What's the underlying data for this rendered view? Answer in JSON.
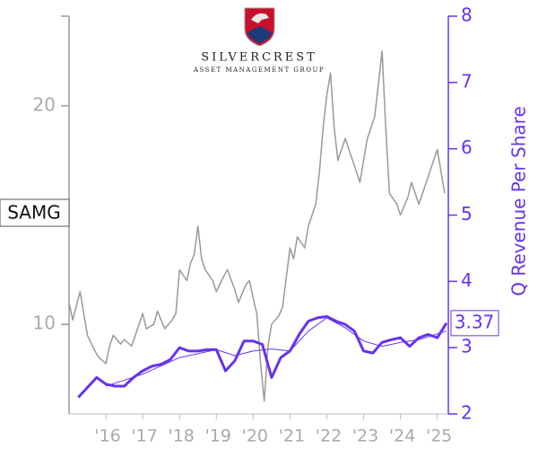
{
  "logo": {
    "name": "SILVERCREST",
    "tagline": "ASSET MANAGEMENT GROUP"
  },
  "chart_data": {
    "type": "line",
    "ticker_label": "SAMG",
    "y2_label": "Q Revenue Per Share",
    "xlim": [
      2015,
      2025.3
    ],
    "xticks": [
      {
        "value": 2016,
        "label": "'16"
      },
      {
        "value": 2017,
        "label": "'17"
      },
      {
        "value": 2018,
        "label": "'18"
      },
      {
        "value": 2019,
        "label": "'19"
      },
      {
        "value": 2020,
        "label": "'20"
      },
      {
        "value": 2021,
        "label": "'21"
      },
      {
        "value": 2022,
        "label": "'22"
      },
      {
        "value": 2023,
        "label": "'23"
      },
      {
        "value": 2024,
        "label": "'24"
      },
      {
        "value": 2025,
        "label": "'25"
      }
    ],
    "ylim": [
      5.9,
      24.1
    ],
    "yticks": [
      10,
      20
    ],
    "y2lim": [
      2,
      8
    ],
    "y2ticks": [
      2,
      3,
      4,
      5,
      6,
      7,
      8
    ],
    "series": [
      {
        "color": "#999999",
        "axis": "y",
        "x": [
          2015.0,
          2015.1,
          2015.3,
          2015.4,
          2015.5,
          2015.7,
          2015.8,
          2016.0,
          2016.1,
          2016.2,
          2016.4,
          2016.5,
          2016.7,
          2016.8,
          2017.0,
          2017.1,
          2017.3,
          2017.4,
          2017.6,
          2017.8,
          2017.9,
          2018.0,
          2018.2,
          2018.3,
          2018.4,
          2018.5,
          2018.6,
          2018.7,
          2018.9,
          2019.0,
          2019.2,
          2019.3,
          2019.5,
          2019.6,
          2019.8,
          2019.9,
          2020.0,
          2020.1,
          2020.2,
          2020.3,
          2020.4,
          2020.5,
          2020.7,
          2020.8,
          2021.0,
          2021.1,
          2021.2,
          2021.4,
          2021.5,
          2021.7,
          2021.8,
          2021.9,
          2022.0,
          2022.1,
          2022.2,
          2022.3,
          2022.5,
          2022.6,
          2022.8,
          2022.9,
          2023.0,
          2023.1,
          2023.3,
          2023.4,
          2023.5,
          2023.6,
          2023.7,
          2023.9,
          2024.0,
          2024.2,
          2024.3,
          2024.5,
          2024.6,
          2024.8,
          2024.9,
          2025.0,
          2025.1,
          2025.2
        ],
        "values": [
          11,
          10.2,
          11.5,
          10.5,
          9.5,
          8.8,
          8.5,
          8.2,
          9.0,
          9.5,
          9.1,
          9.3,
          9.0,
          9.5,
          10.5,
          9.8,
          10.0,
          10.6,
          9.8,
          10.2,
          10.5,
          12.5,
          12.0,
          12.8,
          13.2,
          14.5,
          13.0,
          12.5,
          12.0,
          11.5,
          12.2,
          12.5,
          11.6,
          11.0,
          11.8,
          12.0,
          11.2,
          10.5,
          8.2,
          6.5,
          9.0,
          10.0,
          10.4,
          10.8,
          13.5,
          13.0,
          14.0,
          13.5,
          14.5,
          15.5,
          17.0,
          19.0,
          20.5,
          21.5,
          19.0,
          17.5,
          18.5,
          18.0,
          17.0,
          16.5,
          17.5,
          18.5,
          19.5,
          21.0,
          22.5,
          19.0,
          16.0,
          15.5,
          15.0,
          15.8,
          16.5,
          15.5,
          16.0,
          17.0,
          17.5,
          18.0,
          17.0,
          16.0
        ]
      },
      {
        "color": "#6633ee",
        "axis": "y2",
        "x": [
          2015.25,
          2015.5,
          2015.75,
          2016.0,
          2016.25,
          2016.5,
          2016.75,
          2017.0,
          2017.25,
          2017.5,
          2017.75,
          2018.0,
          2018.25,
          2018.5,
          2018.75,
          2019.0,
          2019.25,
          2019.5,
          2019.75,
          2020.0,
          2020.25,
          2020.5,
          2020.75,
          2021.0,
          2021.25,
          2021.5,
          2021.75,
          2022.0,
          2022.25,
          2022.5,
          2022.75,
          2023.0,
          2023.25,
          2023.5,
          2023.75,
          2024.0,
          2024.25,
          2024.5,
          2024.75,
          2025.0,
          2025.25
        ],
        "values": [
          2.25,
          2.4,
          2.55,
          2.45,
          2.42,
          2.42,
          2.55,
          2.65,
          2.72,
          2.75,
          2.82,
          3.0,
          2.95,
          2.95,
          2.97,
          2.97,
          2.65,
          2.8,
          3.1,
          3.1,
          3.05,
          2.55,
          2.85,
          2.95,
          3.2,
          3.4,
          3.45,
          3.47,
          3.4,
          3.35,
          3.25,
          2.95,
          2.92,
          3.08,
          3.12,
          3.15,
          3.02,
          3.15,
          3.2,
          3.15,
          3.37
        ]
      },
      {
        "color": "#6633ee",
        "axis": "y2",
        "x": [
          2016.0,
          2017.0,
          2018.0,
          2019.0,
          2019.5,
          2020.0,
          2020.5,
          2021.0,
          2021.5,
          2022.0,
          2022.5,
          2023.0,
          2023.5,
          2024.0,
          2024.5,
          2025.25
        ],
        "values": [
          2.42,
          2.6,
          2.85,
          2.97,
          2.88,
          2.95,
          2.98,
          2.95,
          3.25,
          3.45,
          3.3,
          3.1,
          3.02,
          3.08,
          3.12,
          3.25
        ]
      }
    ]
  }
}
